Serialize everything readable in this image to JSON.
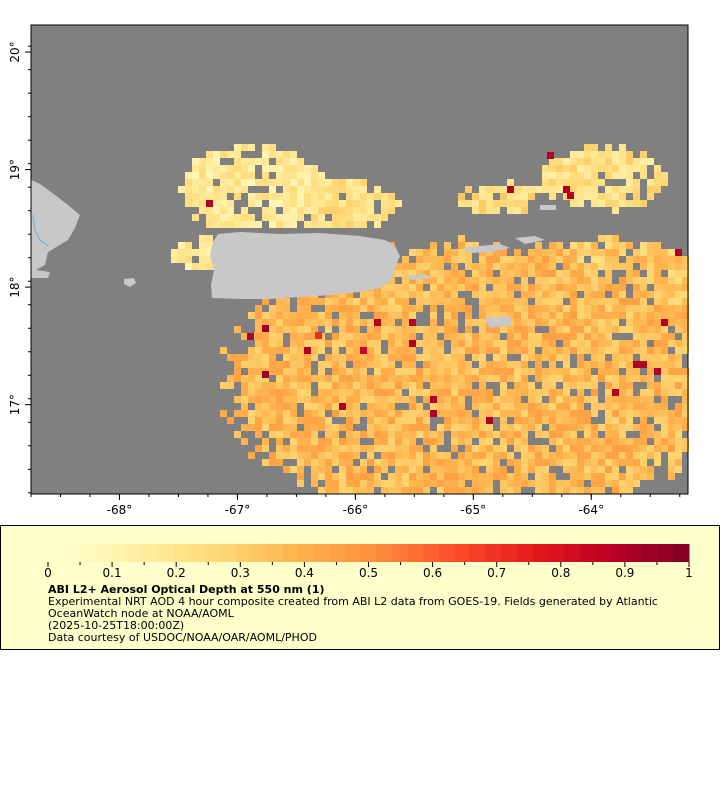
{
  "map": {
    "lon_ticks": [
      "-68°",
      "-67°",
      "-66°",
      "-65°",
      "-64°"
    ],
    "lon_values": [
      -68,
      -67,
      -66,
      -65,
      -64
    ],
    "lat_ticks": [
      "20°",
      "19°",
      "18°",
      "17°"
    ],
    "lat_values": [
      20,
      19,
      18,
      17
    ],
    "lon_range": [
      -68.75,
      -63.18
    ],
    "lat_range": [
      16.24,
      20.23
    ],
    "colors": {
      "ocean": "#808080",
      "land": "#c8c8c8",
      "river": "#6fa8dc"
    }
  },
  "legend": {
    "colorbar_ticks": [
      "0",
      "0.1",
      "0.2",
      "0.3",
      "0.4",
      "0.5",
      "0.6",
      "0.7",
      "0.8",
      "0.9",
      "1"
    ],
    "range": [
      0,
      1
    ],
    "colors": [
      "#ffffcc",
      "#ffeda0",
      "#fed976",
      "#feb24c",
      "#fd8d3c",
      "#fc4e2a",
      "#e31a1c",
      "#bd0026",
      "#800026"
    ],
    "title": "ABI L2+ Aerosol Optical Depth at 550 nm (1)",
    "line1": "Experimental NRT AOD 4 hour composite created from ABI L2 data from GOES-19. Fields generated by Atlantic",
    "line2": "OceanWatch node at NOAA/AOML",
    "line3": "(2025-10-25T18:00:00Z)",
    "line4": "Data courtesy of USDOC/NOAA/OAR/AOML/PHOD"
  }
}
